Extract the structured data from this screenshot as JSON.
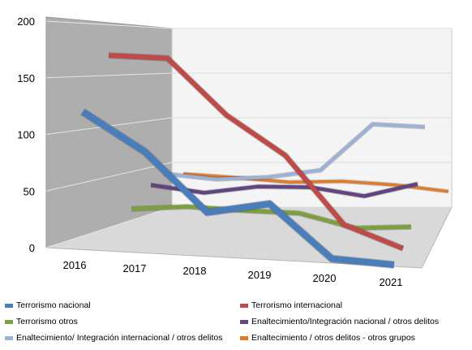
{
  "chart_data": {
    "type": "line",
    "style": "3d",
    "categories": [
      "2016",
      "2017",
      "2018",
      "2019",
      "2020",
      "2021"
    ],
    "ylim": [
      0,
      200
    ],
    "yticks": [
      "0",
      "50",
      "100",
      "150",
      "200"
    ],
    "grid": true,
    "legend_position": "bottom",
    "series": [
      {
        "name": "Terrorismo nacional",
        "color": "#4a7ebb",
        "values": [
          120,
          87,
          36,
          46,
          0,
          -3
        ]
      },
      {
        "name": "Terrorismo internacional",
        "color": "#be4b48",
        "values": [
          172,
          172,
          120,
          84,
          20,
          0
        ]
      },
      {
        "name": "Terrorismo otros",
        "color": "#7d9f3e",
        "values": [
          22,
          27,
          26,
          26,
          14,
          18
        ]
      },
      {
        "name": "Enaltecimiento/Integración nacional / otros delitos",
        "color": "#62457f",
        "values": [
          40,
          35,
          44,
          46,
          40,
          55
        ]
      },
      {
        "name": "Enaltecimiento/ Integración internacional / otros delitos",
        "color": "#9bb1d6",
        "values": [
          46,
          43,
          48,
          58,
          108,
          108
        ]
      },
      {
        "name": "Enaltecimiento / otros delitos - otros grupos",
        "color": "#e07b2a",
        "values": [
          40,
          39,
          37,
          41,
          40,
          36
        ]
      }
    ]
  }
}
